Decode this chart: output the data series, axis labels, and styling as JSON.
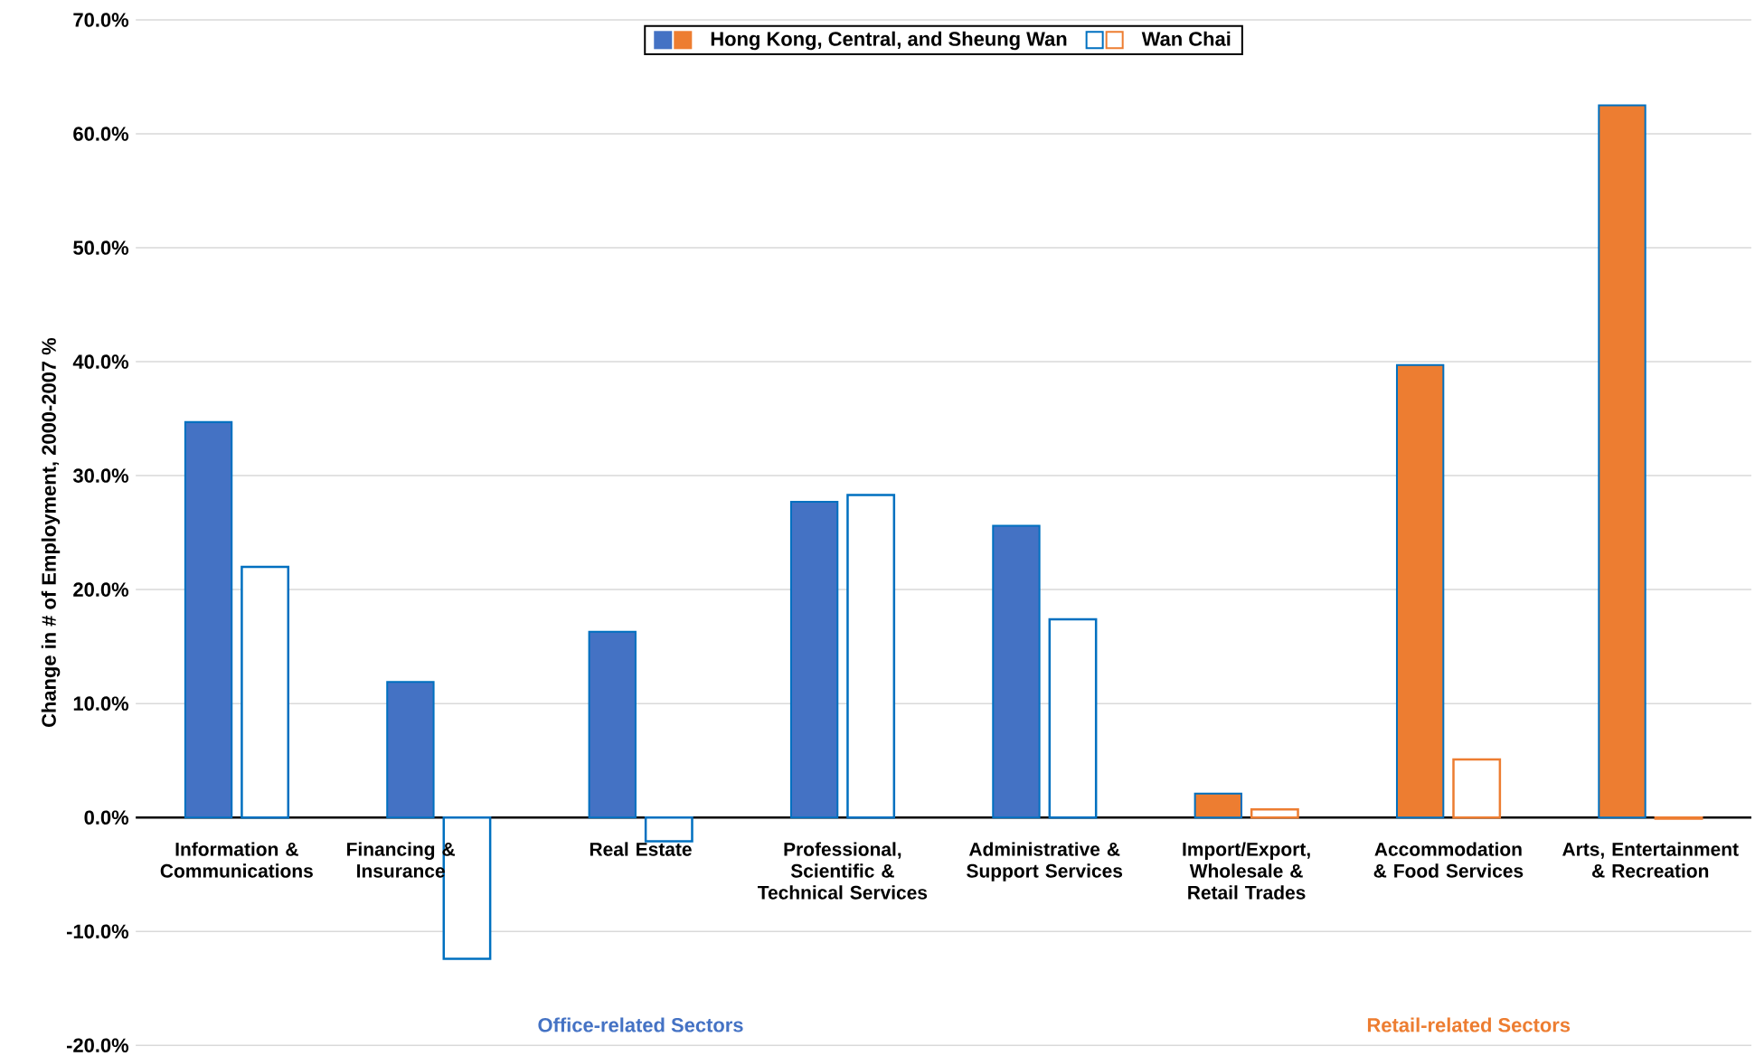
{
  "chart_data": {
    "type": "bar",
    "ylabel": "Change in # of Employment, 2000-2007 %",
    "categories": [
      "Information & Communications",
      "Financing & Insurance",
      "Real Estate",
      "Professional, Scientific & Technical Services",
      "Administrative & Support Services",
      "Import/Export, Wholesale & Retail Trades",
      "Accommodation & Food Services",
      "Arts, Entertainment & Recreation"
    ],
    "series": [
      {
        "name": "Hong Kong, Central, and Sheung Wan",
        "colors": [
          "#4472c4",
          "#4472c4",
          "#4472c4",
          "#4472c4",
          "#4472c4",
          "#ed7d31",
          "#ed7d31",
          "#ed7d31"
        ],
        "values": [
          34.7,
          11.9,
          16.3,
          27.7,
          25.6,
          2.1,
          39.7,
          62.5
        ]
      },
      {
        "name": "Wan Chai",
        "colors": [
          "#0070c0",
          "#0070c0",
          "#0070c0",
          "#0070c0",
          "#0070c0",
          "#ed7d31",
          "#ed7d31",
          "#ed7d31"
        ],
        "values": [
          22.0,
          -12.4,
          -2.1,
          28.3,
          17.4,
          0.7,
          5.1,
          -0.1
        ]
      }
    ],
    "ylim": [
      -20,
      70
    ],
    "yticks": [
      {
        "value": -20,
        "label": "-20.0%"
      },
      {
        "value": -10,
        "label": "-10.0%"
      },
      {
        "value": 0,
        "label": "0.0%"
      },
      {
        "value": 10,
        "label": "10.0%"
      },
      {
        "value": 20,
        "label": "20.0%"
      },
      {
        "value": 30,
        "label": "30.0%"
      },
      {
        "value": 40,
        "label": "40.0%"
      },
      {
        "value": 50,
        "label": "50.0%"
      },
      {
        "value": 60,
        "label": "60.0%"
      },
      {
        "value": 70,
        "label": "70.0%"
      }
    ],
    "grid": "y",
    "legend": "top",
    "annotations": [
      "Office-related Sectors",
      "Retail-related Sectors"
    ]
  }
}
